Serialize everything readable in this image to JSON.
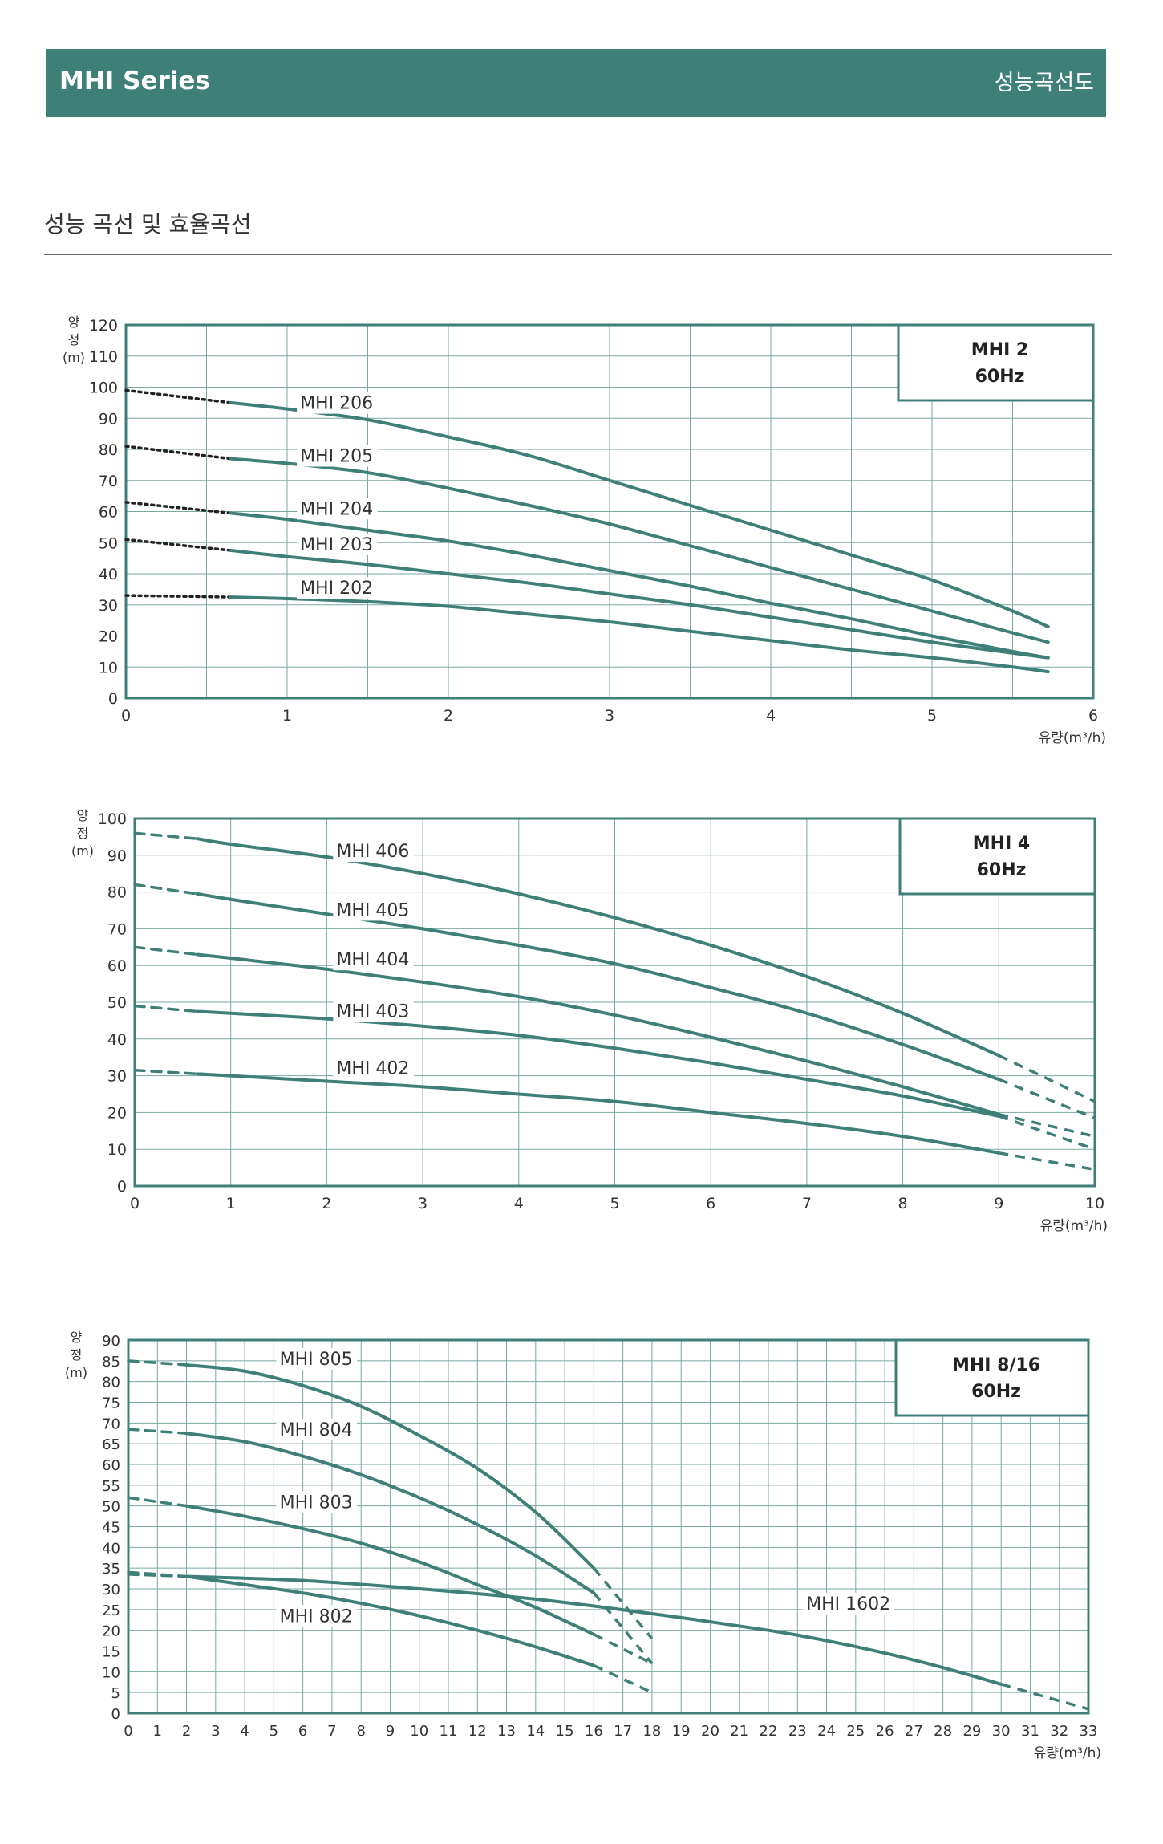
{
  "header": {
    "series": "MHI Series",
    "right_title": "성능곡선도"
  },
  "section": {
    "title": "성능 곡선 및 효율곡선"
  },
  "colors": {
    "header_bg": "#3e7f78",
    "curve": "#3e7f78",
    "frame": "#3e7f78",
    "grid": "#7aa8a3",
    "text": "#333333"
  },
  "chart_data": [
    {
      "type": "line",
      "legend_box": [
        "MHI 2",
        "60Hz"
      ],
      "ylabel": [
        "양",
        "정",
        "(m)"
      ],
      "xlabel": "유량(m³/h)",
      "xlim": [
        0,
        6
      ],
      "ylim": [
        0,
        120
      ],
      "xticks": [
        0,
        1,
        2,
        3,
        4,
        5,
        6
      ],
      "yticks": [
        0,
        10,
        20,
        30,
        40,
        50,
        60,
        70,
        80,
        90,
        100,
        110,
        120
      ],
      "x_minor_step": 0.5,
      "grid": true,
      "dash_style": "dotted",
      "series": [
        {
          "name": "MHI 206",
          "label_at": [
            1.08,
            93
          ],
          "ext_start": [
            [
              0,
              99
            ]
          ],
          "solid": [
            [
              0.65,
              95
            ],
            [
              1,
              93
            ],
            [
              1.5,
              89.5
            ],
            [
              2,
              84
            ],
            [
              2.5,
              78
            ],
            [
              3,
              70
            ],
            [
              3.5,
              62
            ],
            [
              4,
              54
            ],
            [
              4.5,
              46
            ],
            [
              5,
              38
            ],
            [
              5.5,
              28
            ],
            [
              5.72,
              23
            ]
          ]
        },
        {
          "name": "MHI 205",
          "label_at": [
            1.08,
            76
          ],
          "ext_start": [
            [
              0,
              81
            ]
          ],
          "solid": [
            [
              0.65,
              77
            ],
            [
              1,
              75.5
            ],
            [
              1.5,
              72.5
            ],
            [
              2,
              67.5
            ],
            [
              2.5,
              62
            ],
            [
              3,
              56
            ],
            [
              3.5,
              49
            ],
            [
              4,
              42
            ],
            [
              4.5,
              35
            ],
            [
              5,
              28
            ],
            [
              5.5,
              21
            ],
            [
              5.72,
              18
            ]
          ]
        },
        {
          "name": "MHI 204",
          "label_at": [
            1.08,
            59
          ],
          "ext_start": [
            [
              0,
              63
            ]
          ],
          "solid": [
            [
              0.65,
              59.5
            ],
            [
              1,
              57.5
            ],
            [
              1.5,
              54
            ],
            [
              2,
              50.5
            ],
            [
              2.5,
              46
            ],
            [
              3,
              41
            ],
            [
              3.5,
              36
            ],
            [
              4,
              30.5
            ],
            [
              4.5,
              25.5
            ],
            [
              5,
              20
            ],
            [
              5.5,
              15
            ],
            [
              5.72,
              13
            ]
          ]
        },
        {
          "name": "MHI 203",
          "label_at": [
            1.08,
            47.5
          ],
          "ext_start": [
            [
              0,
              51
            ]
          ],
          "solid": [
            [
              0.65,
              47.5
            ],
            [
              1,
              45.5
            ],
            [
              1.5,
              43
            ],
            [
              2,
              40
            ],
            [
              2.5,
              37
            ],
            [
              3,
              33.5
            ],
            [
              3.5,
              30
            ],
            [
              4,
              26
            ],
            [
              4.5,
              22
            ],
            [
              5,
              18
            ],
            [
              5.5,
              14.5
            ],
            [
              5.72,
              13
            ]
          ]
        },
        {
          "name": "MHI 202",
          "label_at": [
            1.08,
            33.5
          ],
          "ext_start": [
            [
              0,
              33
            ]
          ],
          "solid": [
            [
              0.65,
              32.5
            ],
            [
              1,
              32
            ],
            [
              1.5,
              31
            ],
            [
              2,
              29.5
            ],
            [
              2.5,
              27
            ],
            [
              3,
              24.5
            ],
            [
              3.5,
              21.5
            ],
            [
              4,
              18.5
            ],
            [
              4.5,
              15.5
            ],
            [
              5,
              13
            ],
            [
              5.5,
              10
            ],
            [
              5.72,
              8.5
            ]
          ]
        }
      ]
    },
    {
      "type": "line",
      "legend_box": [
        "MHI 4",
        "60Hz"
      ],
      "ylabel": [
        "양",
        "정",
        "(m)"
      ],
      "xlabel": "유량(m³/h)",
      "xlim": [
        0,
        10
      ],
      "ylim": [
        0,
        100
      ],
      "xticks": [
        0,
        1,
        2,
        3,
        4,
        5,
        6,
        7,
        8,
        9,
        10
      ],
      "yticks": [
        0,
        10,
        20,
        30,
        40,
        50,
        60,
        70,
        80,
        90,
        100
      ],
      "x_minor_step": 1,
      "grid": true,
      "dash_style": "dashed",
      "series": [
        {
          "name": "MHI 406",
          "label_at": [
            2.1,
            89.5
          ],
          "ext_start": [
            [
              0,
              96
            ]
          ],
          "ext_end": [
            [
              10,
              23
            ]
          ],
          "solid": [
            [
              0.65,
              94.5
            ],
            [
              1,
              93
            ],
            [
              2,
              89.5
            ],
            [
              3,
              85
            ],
            [
              4,
              79.5
            ],
            [
              5,
              73
            ],
            [
              6,
              65.5
            ],
            [
              7,
              57
            ],
            [
              8,
              47
            ],
            [
              9,
              35.5
            ]
          ]
        },
        {
          "name": "MHI 405",
          "label_at": [
            2.1,
            73.5
          ],
          "ext_start": [
            [
              0,
              82
            ]
          ],
          "ext_end": [
            [
              10,
              18.5
            ]
          ],
          "solid": [
            [
              0.65,
              79.5
            ],
            [
              1,
              78
            ],
            [
              2,
              74
            ],
            [
              3,
              70
            ],
            [
              4,
              65.5
            ],
            [
              5,
              60.5
            ],
            [
              6,
              54
            ],
            [
              7,
              47
            ],
            [
              8,
              38.5
            ],
            [
              9,
              29
            ]
          ]
        },
        {
          "name": "MHI 404",
          "label_at": [
            2.1,
            60
          ],
          "ext_start": [
            [
              0,
              65
            ]
          ],
          "ext_end": [
            [
              10,
              13.5
            ]
          ],
          "solid": [
            [
              0.65,
              63
            ],
            [
              1,
              62
            ],
            [
              2,
              59
            ],
            [
              3,
              55.5
            ],
            [
              4,
              51.5
            ],
            [
              5,
              46.5
            ],
            [
              6,
              40.5
            ],
            [
              7,
              34
            ],
            [
              8,
              27
            ],
            [
              9,
              19.5
            ]
          ]
        },
        {
          "name": "MHI 403",
          "label_at": [
            2.1,
            46
          ],
          "ext_start": [
            [
              0,
              49
            ]
          ],
          "ext_end": [
            [
              10,
              10
            ]
          ],
          "solid": [
            [
              0.65,
              47.5
            ],
            [
              1,
              47
            ],
            [
              2,
              45.5
            ],
            [
              3,
              43.5
            ],
            [
              4,
              41
            ],
            [
              5,
              37.5
            ],
            [
              6,
              33.5
            ],
            [
              7,
              29
            ],
            [
              8,
              24.5
            ],
            [
              9,
              19
            ]
          ]
        },
        {
          "name": "MHI 402",
          "label_at": [
            2.1,
            30.5
          ],
          "ext_start": [
            [
              0,
              31.5
            ]
          ],
          "ext_end": [
            [
              10,
              4.5
            ]
          ],
          "solid": [
            [
              0.65,
              30.5
            ],
            [
              1,
              30
            ],
            [
              2,
              28.5
            ],
            [
              3,
              27
            ],
            [
              4,
              25
            ],
            [
              5,
              23
            ],
            [
              6,
              20
            ],
            [
              7,
              17
            ],
            [
              8,
              13.5
            ],
            [
              9,
              9
            ]
          ]
        }
      ]
    },
    {
      "type": "line",
      "legend_box": [
        "MHI 8/16",
        "60Hz"
      ],
      "ylabel": [
        "양",
        "정",
        "(m)"
      ],
      "xlabel": "유량(m³/h)",
      "xlim": [
        0,
        33
      ],
      "ylim": [
        0,
        90
      ],
      "xticks": [
        0,
        1,
        2,
        3,
        4,
        5,
        6,
        7,
        8,
        9,
        10,
        11,
        12,
        13,
        14,
        15,
        16,
        17,
        18,
        19,
        20,
        21,
        22,
        23,
        24,
        25,
        26,
        27,
        28,
        29,
        30,
        31,
        32,
        33
      ],
      "yticks": [
        0,
        5,
        10,
        15,
        20,
        25,
        30,
        35,
        40,
        45,
        50,
        55,
        60,
        65,
        70,
        75,
        80,
        85,
        90
      ],
      "x_minor_step": 1,
      "grid": true,
      "dash_style": "dashed",
      "series": [
        {
          "name": "MHI 805",
          "label_at": [
            5.2,
            84
          ],
          "ext_start": [
            [
              0,
              85
            ]
          ],
          "ext_end": [
            [
              18,
              18
            ]
          ],
          "solid": [
            [
              2,
              84
            ],
            [
              4,
              82.5
            ],
            [
              6,
              79
            ],
            [
              8,
              74
            ],
            [
              10,
              67
            ],
            [
              12,
              59
            ],
            [
              14,
              48.5
            ],
            [
              16,
              35
            ]
          ]
        },
        {
          "name": "MHI 804",
          "label_at": [
            5.2,
            67
          ],
          "ext_start": [
            [
              0,
              68.5
            ]
          ],
          "ext_end": [
            [
              18,
              12
            ]
          ],
          "solid": [
            [
              2,
              67.5
            ],
            [
              4,
              65.5
            ],
            [
              6,
              62
            ],
            [
              8,
              57.5
            ],
            [
              10,
              52
            ],
            [
              12,
              45.5
            ],
            [
              14,
              38
            ],
            [
              16,
              29
            ]
          ]
        },
        {
          "name": "MHI 803",
          "label_at": [
            5.2,
            49.5
          ],
          "ext_start": [
            [
              0,
              52
            ]
          ],
          "ext_end": [
            [
              18,
              12
            ]
          ],
          "solid": [
            [
              2,
              50
            ],
            [
              4,
              47.5
            ],
            [
              6,
              44.5
            ],
            [
              8,
              41
            ],
            [
              10,
              36.5
            ],
            [
              12,
              31
            ],
            [
              14,
              25.5
            ],
            [
              16,
              19
            ]
          ]
        },
        {
          "name": "MHI 802",
          "label_at": [
            5.2,
            22
          ],
          "ext_start": [
            [
              0,
              34
            ]
          ],
          "ext_end": [
            [
              18,
              5
            ]
          ],
          "solid": [
            [
              2,
              33
            ],
            [
              4,
              31
            ],
            [
              6,
              29
            ],
            [
              8,
              26.5
            ],
            [
              10,
              23.5
            ],
            [
              12,
              20
            ],
            [
              14,
              16
            ],
            [
              16,
              11.5
            ]
          ]
        },
        {
          "name": "MHI 1602",
          "label_at": [
            23.3,
            25
          ],
          "ext_start": [
            [
              0,
              33.5
            ]
          ],
          "ext_end": [
            [
              33,
              1
            ]
          ],
          "solid": [
            [
              2,
              33
            ],
            [
              6,
              32
            ],
            [
              10,
              30
            ],
            [
              14,
              27.5
            ],
            [
              18,
              24
            ],
            [
              22,
              20
            ],
            [
              24,
              17.5
            ],
            [
              26,
              14.5
            ],
            [
              28,
              11
            ],
            [
              30,
              7
            ]
          ]
        }
      ]
    }
  ]
}
